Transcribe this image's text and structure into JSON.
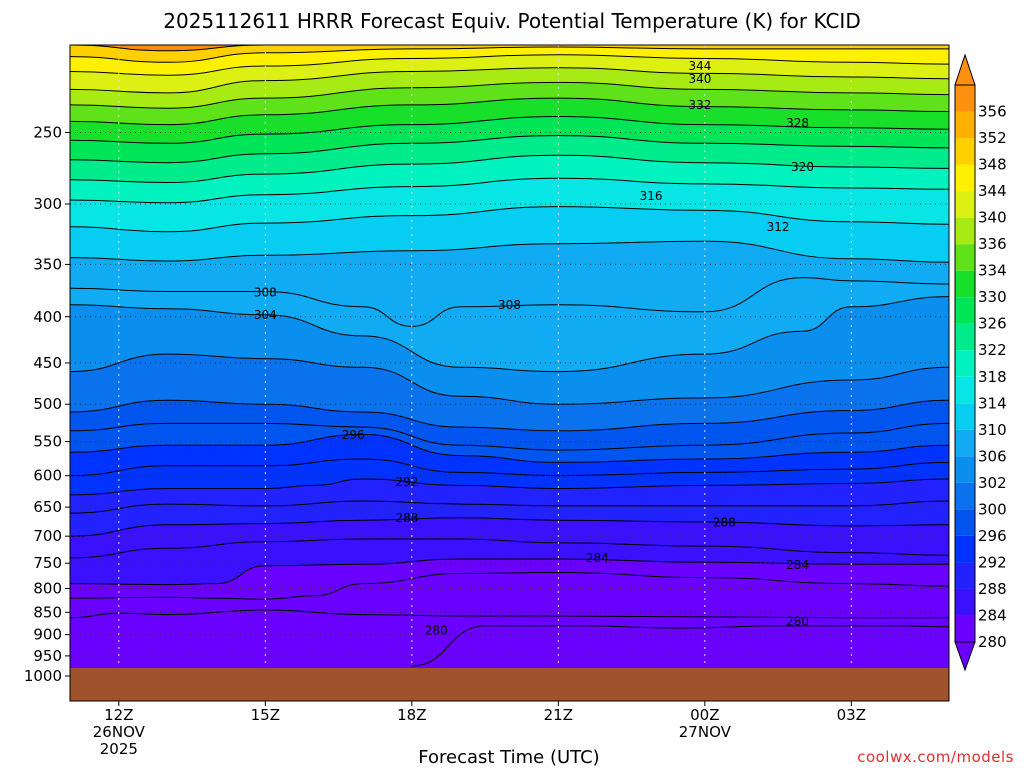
{
  "chart_data": {
    "type": "heatmap",
    "title": "2025112611 HRRR Forecast Equiv. Potential Temperature (K) for KCID",
    "xlabel": "Forecast Time (UTC)",
    "ylabel": "",
    "x_ticks": [
      {
        "label": "12Z",
        "sub": [
          "26NOV",
          "2025"
        ],
        "hour": 0
      },
      {
        "label": "15Z",
        "sub": [],
        "hour": 3
      },
      {
        "label": "18Z",
        "sub": [],
        "hour": 6
      },
      {
        "label": "21Z",
        "sub": [],
        "hour": 9
      },
      {
        "label": "00Z",
        "sub": [
          "27NOV"
        ],
        "hour": 12
      },
      {
        "label": "03Z",
        "sub": [],
        "hour": 15
      }
    ],
    "xlim": [
      -1,
      17
    ],
    "y_ticks": [
      250,
      300,
      350,
      400,
      450,
      500,
      550,
      600,
      650,
      700,
      750,
      800,
      850,
      900,
      950,
      1000
    ],
    "ylim_hPa": [
      200,
      1000
    ],
    "y_scale": "log",
    "surface_pressure_hPa": 975,
    "colorbar": {
      "levels": [
        280,
        284,
        288,
        292,
        296,
        300,
        302,
        306,
        310,
        314,
        318,
        322,
        326,
        330,
        334,
        336,
        340,
        344,
        348,
        352,
        356
      ],
      "colors": [
        "#6a00ff",
        "#3a10ff",
        "#2222ff",
        "#0033ff",
        "#0055ee",
        "#0b72ee",
        "#0a8fee",
        "#10abf2",
        "#08cdf2",
        "#07e6e4",
        "#00f2be",
        "#00ec8c",
        "#00e458",
        "#18e02a",
        "#60e21a",
        "#a8ea14",
        "#dcf014",
        "#fff000",
        "#ffd000",
        "#ffb000",
        "#ff9010"
      ]
    },
    "contour_labels": [
      {
        "text": "344",
        "hour": 11.9,
        "p": 211
      },
      {
        "text": "340",
        "hour": 11.9,
        "p": 218
      },
      {
        "text": "332",
        "hour": 11.9,
        "p": 233
      },
      {
        "text": "328",
        "hour": 13.9,
        "p": 244
      },
      {
        "text": "320",
        "hour": 14.0,
        "p": 273
      },
      {
        "text": "316",
        "hour": 10.9,
        "p": 294
      },
      {
        "text": "312",
        "hour": 13.5,
        "p": 318
      },
      {
        "text": "308",
        "hour": 3.0,
        "p": 376
      },
      {
        "text": "304",
        "hour": 3.0,
        "p": 398
      },
      {
        "text": "308",
        "hour": 8.0,
        "p": 388
      },
      {
        "text": "296",
        "hour": 4.8,
        "p": 541
      },
      {
        "text": "292",
        "hour": 5.9,
        "p": 610
      },
      {
        "text": "288",
        "hour": 5.9,
        "p": 668
      },
      {
        "text": "288",
        "hour": 12.4,
        "p": 676
      },
      {
        "text": "284",
        "hour": 9.8,
        "p": 740
      },
      {
        "text": "284",
        "hour": 13.9,
        "p": 753
      },
      {
        "text": "280",
        "hour": 6.5,
        "p": 890
      },
      {
        "text": "280",
        "hour": 13.9,
        "p": 870
      }
    ],
    "contours": [
      {
        "value": 352,
        "hour": [
          -1,
          1,
          3,
          6,
          9,
          12,
          15,
          17
        ],
        "p": [
          200,
          203,
          200,
          200,
          200,
          200,
          200,
          200
        ]
      },
      {
        "value": 348,
        "hour": [
          -1,
          1,
          3,
          6,
          9,
          12,
          15,
          17
        ],
        "p": [
          206,
          209,
          204,
          202,
          201,
          202,
          202,
          202
        ]
      },
      {
        "value": 344,
        "hour": [
          -1,
          1,
          3,
          6,
          9,
          12,
          15,
          17
        ],
        "p": [
          214,
          216,
          211,
          207,
          205,
          207,
          209,
          210
        ]
      },
      {
        "value": 340,
        "hour": [
          -1,
          1,
          3,
          6,
          9,
          12,
          15,
          17
        ],
        "p": [
          224,
          226,
          219,
          214,
          212,
          215,
          217,
          218
        ]
      },
      {
        "value": 336,
        "hour": [
          -1,
          1,
          3,
          6,
          9,
          12,
          15,
          17
        ],
        "p": [
          233,
          235,
          229,
          223,
          220,
          224,
          226,
          227
        ]
      },
      {
        "value": 332,
        "hour": [
          -1,
          1,
          3,
          6,
          9,
          12,
          15,
          17
        ],
        "p": [
          243,
          245,
          239,
          233,
          229,
          234,
          236,
          237
        ]
      },
      {
        "value": 328,
        "hour": [
          -1,
          1,
          3,
          6,
          9,
          12,
          15,
          17
        ],
        "p": [
          255,
          257,
          251,
          245,
          240,
          245,
          247,
          248
        ]
      },
      {
        "value": 324,
        "hour": [
          -1,
          1,
          3,
          6,
          9,
          12,
          15,
          17
        ],
        "p": [
          268,
          270,
          264,
          257,
          252,
          257,
          259,
          260
        ]
      },
      {
        "value": 320,
        "hour": [
          -1,
          1,
          3,
          6,
          9,
          12,
          15,
          17
        ],
        "p": [
          282,
          284,
          278,
          271,
          265,
          270,
          273,
          274
        ]
      },
      {
        "value": 316,
        "hour": [
          -1,
          1,
          3,
          6,
          9,
          12,
          15,
          17
        ],
        "p": [
          297,
          299,
          293,
          287,
          281,
          285,
          288,
          289
        ]
      },
      {
        "value": 312,
        "hour": [
          -1,
          1,
          3,
          6,
          9,
          12,
          15,
          17
        ],
        "p": [
          318,
          322,
          315,
          309,
          302,
          305,
          314,
          316
        ]
      },
      {
        "value": 310,
        "hour": [
          -1,
          1,
          3,
          6,
          9,
          12,
          15,
          17
        ],
        "p": [
          344,
          347,
          342,
          338,
          332,
          330,
          345,
          348
        ]
      },
      {
        "value": 308,
        "hour": [
          -1,
          1,
          3,
          5,
          6,
          7,
          9,
          12,
          14,
          15,
          17
        ],
        "p": [
          372,
          375,
          375,
          390,
          410,
          390,
          388,
          395,
          362,
          365,
          368
        ]
      },
      {
        "value": 304,
        "hour": [
          -1,
          1,
          3,
          5,
          7,
          9,
          12,
          14,
          15,
          17
        ],
        "p": [
          388,
          392,
          398,
          420,
          455,
          460,
          440,
          415,
          390,
          380
        ]
      },
      {
        "value": 302,
        "hour": [
          -1,
          1,
          3,
          5,
          7,
          9,
          12,
          15,
          17
        ],
        "p": [
          460,
          440,
          445,
          455,
          490,
          500,
          492,
          470,
          455
        ]
      },
      {
        "value": 300,
        "hour": [
          -1,
          1,
          3,
          5,
          7,
          9,
          12,
          15,
          17
        ],
        "p": [
          510,
          495,
          500,
          510,
          530,
          535,
          525,
          508,
          495
        ]
      },
      {
        "value": 298,
        "hour": [
          -1,
          1,
          3,
          5,
          7,
          9,
          12,
          15,
          17
        ],
        "p": [
          535,
          525,
          525,
          530,
          555,
          562,
          555,
          538,
          525
        ]
      },
      {
        "value": 296,
        "hour": [
          -1,
          1,
          3,
          5,
          7,
          9,
          12,
          15,
          17
        ],
        "p": [
          565,
          555,
          555,
          540,
          570,
          580,
          575,
          565,
          555
        ]
      },
      {
        "value": 294,
        "hour": [
          -1,
          1,
          3,
          5,
          7,
          9,
          12,
          15,
          17
        ],
        "p": [
          600,
          585,
          585,
          575,
          595,
          600,
          595,
          590,
          580
        ]
      },
      {
        "value": 292,
        "hour": [
          -1,
          1,
          3,
          4,
          5,
          7,
          9,
          12,
          15,
          17
        ],
        "p": [
          630,
          620,
          620,
          615,
          605,
          615,
          620,
          615,
          612,
          605
        ]
      },
      {
        "value": 290,
        "hour": [
          -1,
          1,
          3,
          5,
          7,
          9,
          12,
          15,
          17
        ],
        "p": [
          660,
          645,
          648,
          640,
          645,
          648,
          648,
          648,
          640
        ]
      },
      {
        "value": 288,
        "hour": [
          -1,
          1,
          3,
          5,
          7,
          9,
          12,
          15,
          17
        ],
        "p": [
          700,
          680,
          678,
          672,
          668,
          672,
          675,
          682,
          680
        ]
      },
      {
        "value": 286,
        "hour": [
          -1,
          1,
          3,
          5,
          7,
          9,
          12,
          15,
          17
        ],
        "p": [
          740,
          722,
          710,
          705,
          705,
          712,
          718,
          730,
          735
        ]
      },
      {
        "value": 284,
        "hour": [
          -1,
          1,
          2,
          3,
          5,
          7,
          9,
          12,
          15,
          17
        ],
        "p": [
          790,
          792,
          790,
          755,
          752,
          742,
          742,
          748,
          752,
          752
        ]
      },
      {
        "value": 282,
        "hour": [
          -1,
          1,
          2,
          3,
          4,
          5,
          7,
          9,
          12,
          15,
          17
        ],
        "p": [
          820,
          818,
          820,
          822,
          815,
          790,
          770,
          768,
          778,
          790,
          795
        ]
      },
      {
        "value": 280,
        "hour": [
          -1,
          0,
          1,
          3,
          5,
          7,
          9,
          12,
          15,
          17
        ],
        "p": [
          862,
          852,
          855,
          845,
          855,
          858,
          858,
          860,
          862,
          862
        ]
      },
      {
        "value": 278,
        "hour": [
          6.0,
          7.5,
          9.5,
          11.5,
          13.5,
          16,
          17
        ],
        "p": [
          975,
          880,
          880,
          885,
          880,
          880,
          882
        ]
      }
    ]
  }
}
